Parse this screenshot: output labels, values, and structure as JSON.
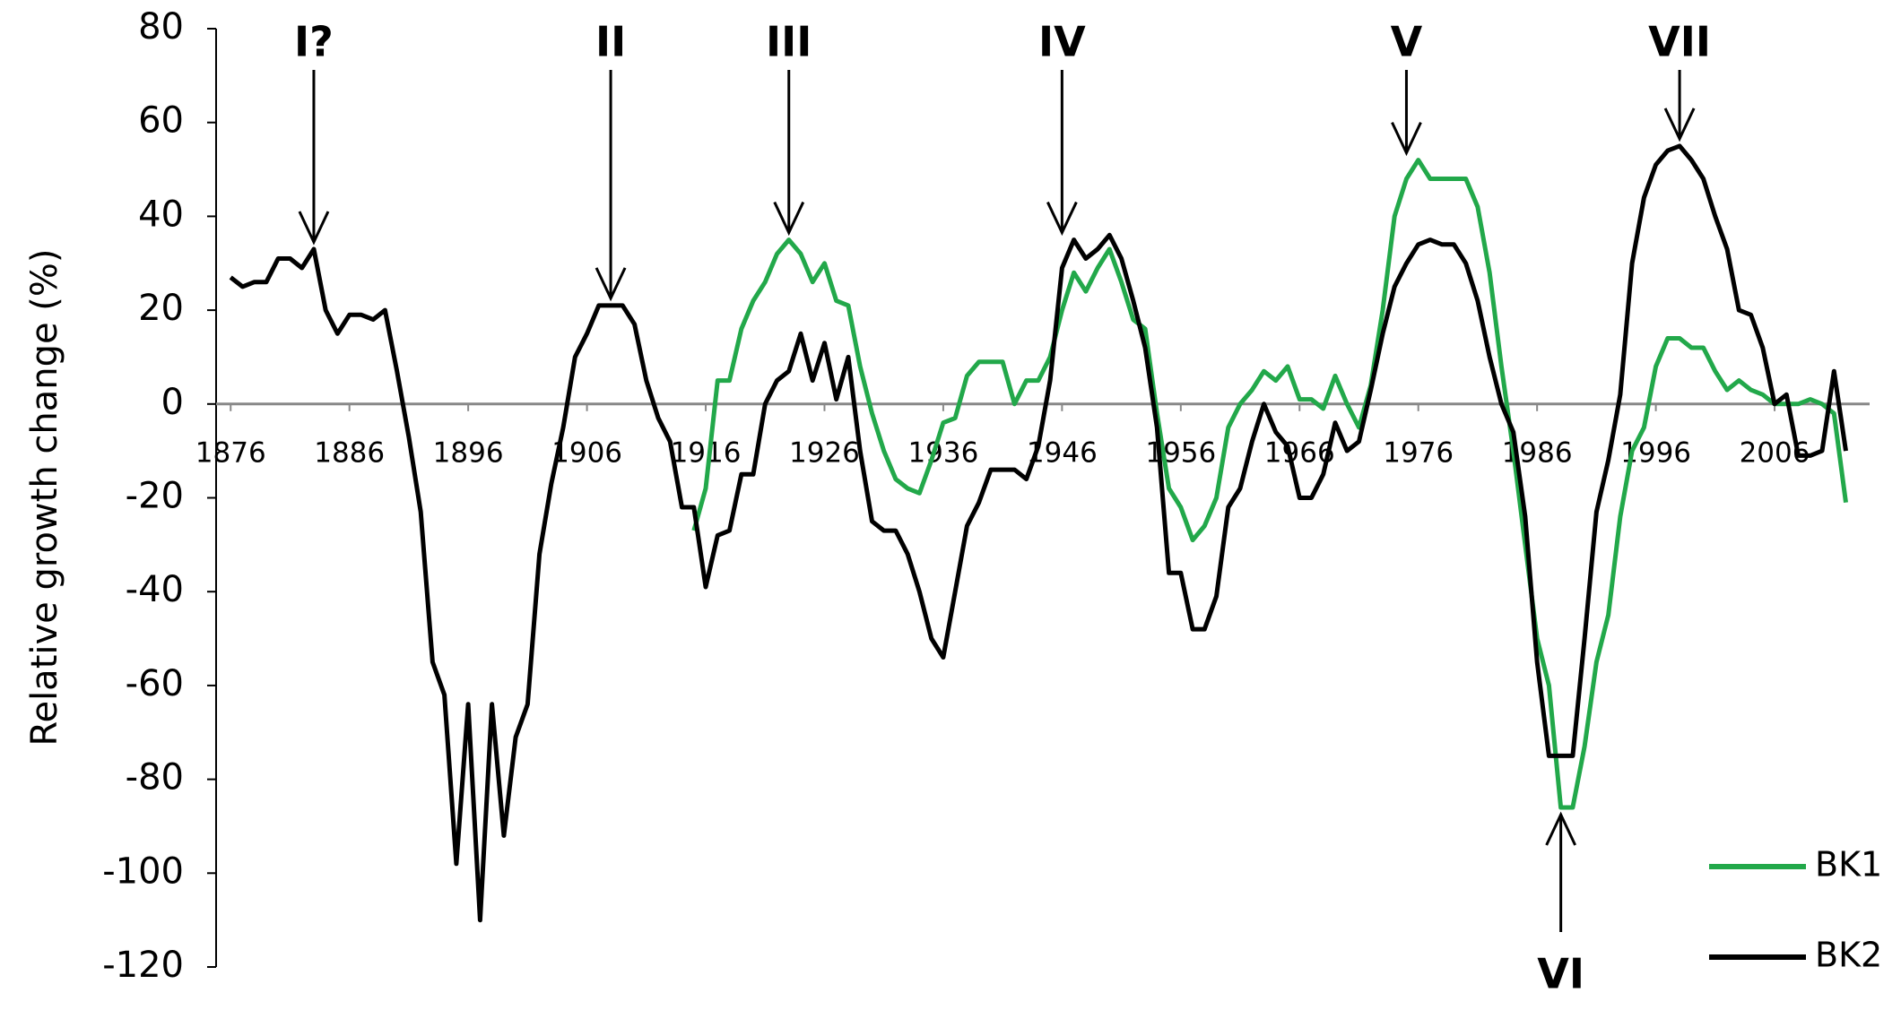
{
  "chart_data": {
    "type": "line",
    "y_label": "Relative growth change (%)",
    "x": [
      1876,
      1877,
      1878,
      1879,
      1880,
      1881,
      1882,
      1883,
      1884,
      1885,
      1886,
      1887,
      1888,
      1889,
      1890,
      1891,
      1892,
      1893,
      1894,
      1895,
      1896,
      1897,
      1898,
      1899,
      1900,
      1901,
      1902,
      1903,
      1904,
      1905,
      1906,
      1907,
      1908,
      1909,
      1910,
      1911,
      1912,
      1913,
      1914,
      1915,
      1916,
      1917,
      1918,
      1919,
      1920,
      1921,
      1922,
      1923,
      1924,
      1925,
      1926,
      1927,
      1928,
      1929,
      1930,
      1931,
      1932,
      1933,
      1934,
      1935,
      1936,
      1937,
      1938,
      1939,
      1940,
      1941,
      1942,
      1943,
      1944,
      1945,
      1946,
      1947,
      1948,
      1949,
      1950,
      1951,
      1952,
      1953,
      1954,
      1955,
      1956,
      1957,
      1958,
      1959,
      1960,
      1961,
      1962,
      1963,
      1964,
      1965,
      1966,
      1967,
      1968,
      1969,
      1970,
      1971,
      1972,
      1973,
      1974,
      1975,
      1976,
      1977,
      1978,
      1979,
      1980,
      1981,
      1982,
      1983,
      1984,
      1985,
      1986,
      1987,
      1988,
      1989,
      1990,
      1991,
      1992,
      1993,
      1994,
      1995,
      1996,
      1997,
      1998,
      1999,
      2000,
      2001,
      2002,
      2003,
      2004,
      2005,
      2006,
      2007,
      2008,
      2009,
      2010,
      2011,
      2012
    ],
    "series": [
      {
        "name": "BK1",
        "color": "#22a84a",
        "values": [
          null,
          null,
          null,
          null,
          null,
          null,
          null,
          null,
          null,
          null,
          null,
          null,
          null,
          null,
          null,
          null,
          null,
          null,
          null,
          null,
          null,
          null,
          null,
          null,
          null,
          null,
          null,
          null,
          null,
          null,
          null,
          null,
          null,
          null,
          null,
          null,
          null,
          null,
          null,
          -27,
          -18,
          5,
          5,
          16,
          22,
          26,
          32,
          35,
          32,
          26,
          30,
          22,
          21,
          8,
          -2,
          -10,
          -16,
          -18,
          -19,
          -12,
          -4,
          -3,
          6,
          9,
          9,
          9,
          0,
          5,
          5,
          10,
          20,
          28,
          24,
          29,
          33,
          26,
          18,
          16,
          -2,
          -18,
          -22,
          -29,
          -26,
          -20,
          -5,
          0,
          3,
          7,
          5,
          8,
          1,
          1,
          -1,
          6,
          0,
          -5,
          4,
          20,
          40,
          48,
          52,
          48,
          48,
          48,
          48,
          42,
          28,
          8,
          -10,
          -30,
          -50,
          -60,
          -86,
          -86,
          -73,
          -55,
          -45,
          -24,
          -10,
          -5,
          8,
          14,
          14,
          12,
          12,
          7,
          3,
          5,
          3,
          2,
          0,
          0,
          0,
          1,
          0,
          -2,
          -21
        ]
      },
      {
        "name": "BK2",
        "color": "#000000",
        "values": [
          27,
          25,
          26,
          26,
          31,
          31,
          29,
          33,
          20,
          15,
          19,
          19,
          18,
          20,
          7,
          -7,
          -23,
          -55,
          -62,
          -98,
          -64,
          -110,
          -64,
          -92,
          -71,
          -64,
          -32,
          -17,
          -5,
          10,
          15,
          21,
          21,
          21,
          17,
          5,
          -3,
          -8,
          -22,
          -22,
          -39,
          -28,
          -27,
          -15,
          -15,
          0,
          5,
          7,
          15,
          5,
          13,
          1,
          10,
          -10,
          -25,
          -27,
          -27,
          -32,
          -40,
          -50,
          -54,
          -40,
          -26,
          -21,
          -14,
          -14,
          -14,
          -16,
          -9,
          5,
          29,
          35,
          31,
          33,
          36,
          31,
          22,
          12,
          -5,
          -36,
          -36,
          -48,
          -48,
          -41,
          -22,
          -18,
          -8,
          0,
          -6,
          -9,
          -20,
          -20,
          -15,
          -4,
          -10,
          -8,
          3,
          15,
          25,
          30,
          34,
          35,
          34,
          34,
          30,
          22,
          10,
          0,
          -6,
          -24,
          -55,
          -75,
          -75,
          -75,
          -50,
          -23,
          -12,
          2,
          30,
          44,
          51,
          54,
          55,
          52,
          48,
          40,
          33,
          20,
          19,
          12,
          0,
          2,
          -11,
          -11,
          -10,
          7,
          -10
        ]
      }
    ],
    "annotations": [
      {
        "text": "I?",
        "x": 1883,
        "y": 33
      },
      {
        "text": "II",
        "x": 1908,
        "y": 21
      },
      {
        "text": "III",
        "x": 1923,
        "y": 35
      },
      {
        "text": "IV",
        "x": 1946,
        "y": 35
      },
      {
        "text": "V",
        "x": 1975,
        "y": 52
      },
      {
        "text": "VI",
        "x": 1988,
        "y": -86
      },
      {
        "text": "VII",
        "x": 1998,
        "y": 55
      }
    ],
    "xlim": [
      1875,
      2014
    ],
    "ylim": [
      -120,
      80
    ],
    "xticks": [
      1876,
      1886,
      1896,
      1906,
      1916,
      1926,
      1936,
      1946,
      1956,
      1966,
      1976,
      1986,
      1996,
      2006
    ],
    "yticks": [
      -120,
      -100,
      -80,
      -60,
      -40,
      -20,
      0,
      20,
      40,
      60,
      80
    ],
    "legend": "lower right"
  }
}
